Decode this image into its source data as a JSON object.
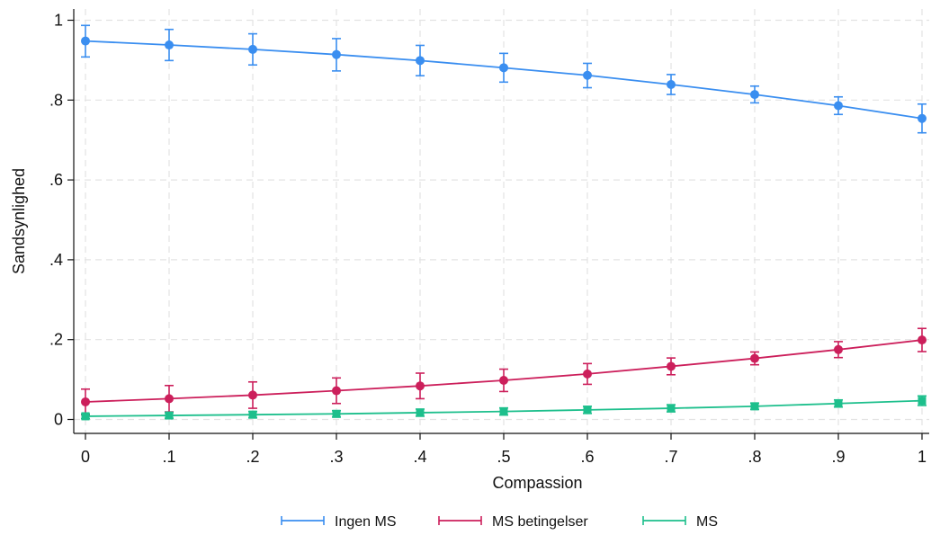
{
  "chart_data": {
    "type": "line",
    "xlabel": "Compassion",
    "ylabel": "Sandsynlighed",
    "x": [
      0,
      0.1,
      0.2,
      0.3,
      0.4,
      0.5,
      0.6,
      0.7,
      0.8,
      0.9,
      1
    ],
    "x_tick_labels": [
      "0",
      ".1",
      ".2",
      ".3",
      ".4",
      ".5",
      ".6",
      ".7",
      ".8",
      ".9",
      "1"
    ],
    "y_ticks": [
      0,
      0.2,
      0.4,
      0.6,
      0.8,
      1
    ],
    "y_tick_labels": [
      "0",
      ".2",
      ".4",
      ".6",
      ".8",
      "1"
    ],
    "xlim": [
      0,
      1
    ],
    "ylim": [
      -0.02,
      1.02
    ],
    "grid": true,
    "legend_position": "bottom",
    "series": [
      {
        "name": "Ingen MS",
        "color": "#3a8ef0",
        "marker": "circle",
        "values": [
          0.948,
          0.938,
          0.927,
          0.914,
          0.899,
          0.881,
          0.862,
          0.839,
          0.814,
          0.786,
          0.754
        ],
        "ci_low": [
          0.908,
          0.899,
          0.888,
          0.873,
          0.861,
          0.845,
          0.831,
          0.814,
          0.793,
          0.764,
          0.718
        ],
        "ci_high": [
          0.987,
          0.977,
          0.966,
          0.954,
          0.937,
          0.917,
          0.892,
          0.864,
          0.835,
          0.808,
          0.79
        ]
      },
      {
        "name": "MS betingelser",
        "color": "#cc1f5b",
        "marker": "circle",
        "values": [
          0.044,
          0.052,
          0.061,
          0.072,
          0.084,
          0.098,
          0.114,
          0.133,
          0.153,
          0.175,
          0.199
        ],
        "ci_low": [
          0.012,
          0.019,
          0.028,
          0.04,
          0.052,
          0.07,
          0.088,
          0.112,
          0.137,
          0.155,
          0.17
        ],
        "ci_high": [
          0.076,
          0.085,
          0.094,
          0.104,
          0.116,
          0.126,
          0.14,
          0.154,
          0.169,
          0.195,
          0.228
        ]
      },
      {
        "name": "MS",
        "color": "#1dbf8c",
        "marker": "square",
        "values": [
          0.008,
          0.01,
          0.012,
          0.014,
          0.017,
          0.02,
          0.024,
          0.028,
          0.033,
          0.04,
          0.047
        ],
        "ci_low": [
          0.002,
          0.003,
          0.004,
          0.006,
          0.008,
          0.011,
          0.015,
          0.019,
          0.025,
          0.031,
          0.035
        ],
        "ci_high": [
          0.014,
          0.017,
          0.02,
          0.022,
          0.026,
          0.029,
          0.033,
          0.037,
          0.041,
          0.049,
          0.059
        ]
      }
    ]
  }
}
